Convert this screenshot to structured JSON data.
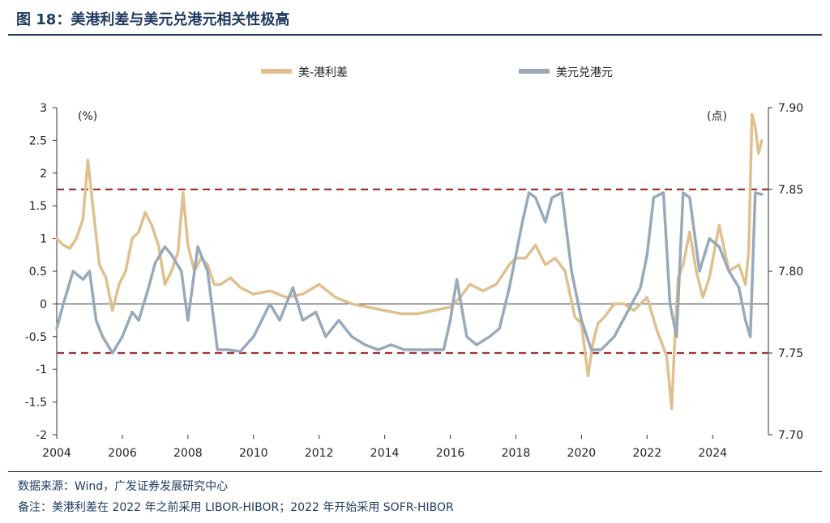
{
  "title": "图 18：美港利差与美元兑港元相关性极高",
  "source": "数据来源：Wind，广发证券发展研究中心",
  "note": "备注：美港利差在 2022 年之前采用 LIBOR-HIBOR；2022 年开始采用 SOFR-HIBOR",
  "colors": {
    "spread": "#e0c08e",
    "hkd": "#98aab9",
    "band": "#a03232",
    "axis": "#333333",
    "title": "#1f3a5f"
  },
  "chart_data": {
    "type": "line",
    "title": "",
    "y_left_unit": "(%)",
    "y_right_unit": "(点)",
    "xlim": [
      2004,
      2025.7
    ],
    "ylim_left": [
      -2,
      3
    ],
    "ylim_right": [
      7.7,
      7.9
    ],
    "x_ticks": [
      "2004",
      "2006",
      "2008",
      "2010",
      "2012",
      "2014",
      "2016",
      "2018",
      "2020",
      "2022",
      "2024"
    ],
    "y_left_ticks": [
      "3",
      "2.5",
      "2",
      "1.5",
      "1",
      "0.5",
      "0",
      "-0.5",
      "-1",
      "-1.5",
      "-2"
    ],
    "y_right_ticks": [
      "7.90",
      "7.85",
      "7.80",
      "7.75",
      "7.70"
    ],
    "legend_position": "top-center",
    "reference_lines_right": [
      7.85,
      7.75
    ],
    "series": [
      {
        "name": "美-港利差",
        "axis": "left",
        "x": [
          2004.0,
          2004.2,
          2004.4,
          2004.6,
          2004.8,
          2004.95,
          2005.1,
          2005.3,
          2005.5,
          2005.7,
          2005.9,
          2006.1,
          2006.3,
          2006.5,
          2006.7,
          2006.9,
          2007.1,
          2007.3,
          2007.5,
          2007.7,
          2007.85,
          2008.0,
          2008.2,
          2008.4,
          2008.6,
          2008.8,
          2009.0,
          2009.3,
          2009.6,
          2010.0,
          2010.5,
          2011.0,
          2011.5,
          2012.0,
          2012.5,
          2013.0,
          2013.5,
          2014.0,
          2014.5,
          2015.0,
          2015.5,
          2016.0,
          2016.3,
          2016.6,
          2017.0,
          2017.4,
          2017.8,
          2018.0,
          2018.3,
          2018.6,
          2018.9,
          2019.2,
          2019.5,
          2019.8,
          2020.0,
          2020.2,
          2020.35,
          2020.5,
          2020.7,
          2021.0,
          2021.3,
          2021.6,
          2022.0,
          2022.3,
          2022.6,
          2022.75,
          2022.85,
          2022.95,
          2023.1,
          2023.3,
          2023.5,
          2023.7,
          2023.9,
          2024.2,
          2024.5,
          2024.8,
          2025.0,
          2025.1,
          2025.2,
          2025.3,
          2025.4,
          2025.5
        ],
        "values": [
          1.0,
          0.9,
          0.85,
          1.0,
          1.3,
          2.2,
          1.5,
          0.6,
          0.4,
          -0.1,
          0.3,
          0.5,
          1.0,
          1.1,
          1.4,
          1.2,
          0.9,
          0.3,
          0.5,
          0.8,
          1.7,
          0.9,
          0.5,
          0.7,
          0.6,
          0.3,
          0.3,
          0.4,
          0.25,
          0.15,
          0.2,
          0.1,
          0.15,
          0.3,
          0.1,
          0.0,
          -0.05,
          -0.1,
          -0.15,
          -0.15,
          -0.1,
          -0.05,
          0.1,
          0.3,
          0.2,
          0.3,
          0.6,
          0.7,
          0.7,
          0.9,
          0.6,
          0.7,
          0.5,
          -0.2,
          -0.3,
          -1.1,
          -0.6,
          -0.3,
          -0.2,
          0.0,
          0.0,
          -0.1,
          0.1,
          -0.4,
          -0.8,
          -1.6,
          -0.5,
          0.4,
          0.6,
          1.1,
          0.5,
          0.1,
          0.4,
          1.2,
          0.5,
          0.6,
          0.3,
          0.8,
          2.9,
          2.7,
          2.3,
          2.5
        ]
      },
      {
        "name": "美元兑港元",
        "axis": "right",
        "x": [
          2004.0,
          2004.2,
          2004.5,
          2004.8,
          2005.0,
          2005.2,
          2005.4,
          2005.7,
          2006.0,
          2006.3,
          2006.5,
          2006.8,
          2007.0,
          2007.3,
          2007.5,
          2007.8,
          2008.0,
          2008.3,
          2008.6,
          2008.9,
          2009.2,
          2009.6,
          2010.0,
          2010.5,
          2010.8,
          2011.2,
          2011.5,
          2011.9,
          2012.2,
          2012.6,
          2013.0,
          2013.4,
          2013.8,
          2014.2,
          2014.6,
          2015.0,
          2015.4,
          2015.8,
          2016.0,
          2016.2,
          2016.5,
          2016.8,
          2017.2,
          2017.5,
          2017.8,
          2018.0,
          2018.2,
          2018.4,
          2018.6,
          2018.9,
          2019.1,
          2019.4,
          2019.7,
          2020.0,
          2020.3,
          2020.6,
          2021.0,
          2021.4,
          2021.8,
          2022.0,
          2022.2,
          2022.5,
          2022.7,
          2022.9,
          2023.1,
          2023.3,
          2023.6,
          2023.9,
          2024.2,
          2024.5,
          2024.8,
          2025.0,
          2025.15,
          2025.3,
          2025.5
        ],
        "values": [
          7.765,
          7.78,
          7.8,
          7.795,
          7.8,
          7.77,
          7.76,
          7.75,
          7.76,
          7.775,
          7.77,
          7.79,
          7.805,
          7.815,
          7.81,
          7.8,
          7.77,
          7.815,
          7.8,
          7.752,
          7.752,
          7.751,
          7.76,
          7.78,
          7.77,
          7.79,
          7.77,
          7.775,
          7.76,
          7.77,
          7.76,
          7.755,
          7.752,
          7.755,
          7.752,
          7.752,
          7.752,
          7.752,
          7.77,
          7.795,
          7.76,
          7.755,
          7.76,
          7.765,
          7.79,
          7.81,
          7.83,
          7.848,
          7.845,
          7.83,
          7.845,
          7.848,
          7.8,
          7.77,
          7.752,
          7.752,
          7.76,
          7.775,
          7.79,
          7.81,
          7.845,
          7.848,
          7.78,
          7.76,
          7.848,
          7.845,
          7.8,
          7.82,
          7.815,
          7.8,
          7.79,
          7.77,
          7.76,
          7.848,
          7.847
        ]
      }
    ]
  }
}
